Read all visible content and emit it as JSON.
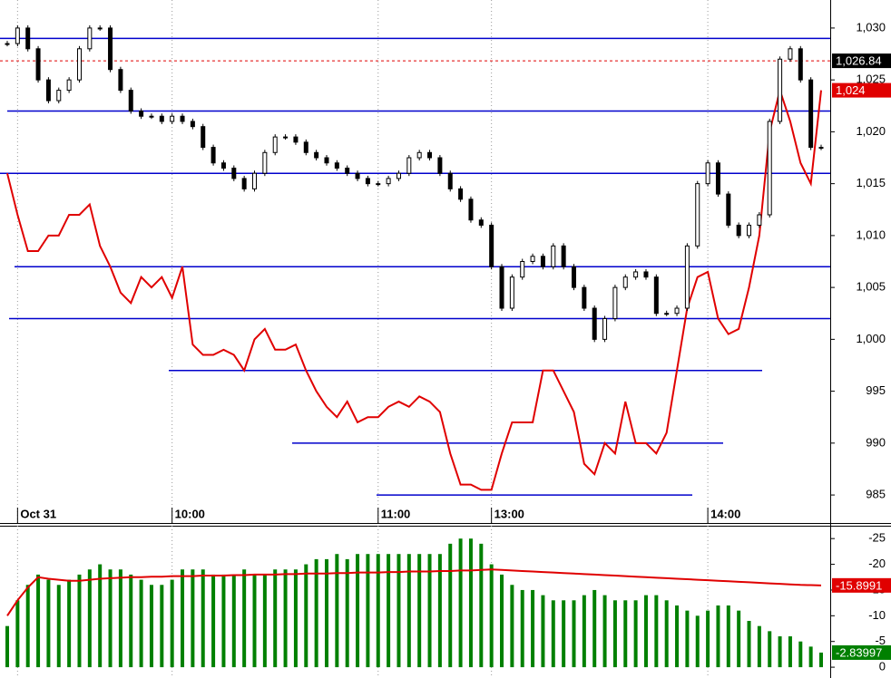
{
  "chart_data": [
    {
      "type": "candlestick",
      "categories": [
        null,
        "Oct 31",
        null,
        null,
        null,
        null,
        null,
        null,
        null,
        null,
        null,
        null,
        null,
        null,
        null,
        null,
        "10:00",
        null,
        null,
        null,
        null,
        null,
        null,
        null,
        null,
        null,
        null,
        null,
        null,
        null,
        null,
        null,
        null,
        null,
        null,
        null,
        "11:00",
        null,
        null,
        null,
        null,
        null,
        null,
        null,
        null,
        null,
        null,
        "13:00",
        null,
        null,
        null,
        null,
        null,
        null,
        null,
        null,
        null,
        null,
        null,
        null,
        null,
        null,
        null,
        null,
        null,
        null,
        null,
        null,
        "14:00",
        null,
        null,
        null,
        null,
        null,
        null,
        null,
        null,
        null,
        null,
        null
      ],
      "values": [
        1028.5,
        1030,
        1028,
        1025,
        1023,
        1024,
        1025,
        1028,
        1030,
        1030,
        1026,
        1024,
        1022,
        1021.5,
        1021.5,
        1021,
        1021.5,
        1021,
        1020.5,
        1018.5,
        1017,
        1016.5,
        1015.5,
        1014.5,
        1016,
        1018,
        1019.5,
        1019.5,
        1019,
        1018,
        1017.5,
        1017,
        1016.5,
        1016,
        1015.5,
        1015,
        1015,
        1015.5,
        1016,
        1017.5,
        1018,
        1017.5,
        1016,
        1014.5,
        1013.5,
        1011.5,
        1011,
        1007,
        1003,
        1006,
        1007.5,
        1008,
        1007,
        1009,
        1007,
        1005,
        1003,
        1000,
        1002,
        1005,
        1006,
        1006.5,
        1006,
        1002.5,
        1002.5,
        1003,
        1009,
        1015,
        1017,
        1014,
        1011,
        1010,
        1011,
        1012,
        1021,
        1027,
        1028,
        1025,
        1018.5,
        1018.5
      ],
      "color": "#000000",
      "series": [
        {
          "color": "#e00000",
          "last_label": "1,024",
          "values": [
            1016,
            1012,
            1008.5,
            1008.5,
            1010,
            1010,
            1012,
            1012,
            1013,
            1009,
            1007,
            1004.5,
            1003.5,
            1006,
            1005,
            1006,
            1004,
            1007,
            999.5,
            998.5,
            998.5,
            999,
            998.5,
            997,
            1000,
            1001,
            999,
            999,
            999.5,
            997,
            995,
            993.5,
            992.5,
            994,
            992,
            992.5,
            992.5,
            993.5,
            994,
            993.5,
            994.5,
            994,
            993,
            989,
            986,
            986,
            985.5,
            985.5,
            989,
            992,
            992,
            992,
            997,
            997,
            995,
            993,
            988,
            987,
            990,
            989,
            994,
            990,
            990,
            989,
            991,
            997,
            1003,
            1006,
            1006.5,
            1002,
            1000.5,
            1001,
            1005,
            1010,
            1020,
            1024,
            1021,
            1017,
            1015,
            1024
          ]
        }
      ],
      "levels": [
        1029,
        1022,
        1016,
        1007,
        1002,
        997,
        990,
        985
      ],
      "level_color": "#0000cc",
      "last_price": {
        "value": 1026.84,
        "label": "1,026.84"
      },
      "ylim": [
        982.3,
        1032.7
      ],
      "yticks": [
        985,
        990,
        995,
        {
          "value": 1000,
          "label": "1,000"
        },
        {
          "value": 1005,
          "label": "1,005"
        },
        {
          "value": 1010,
          "label": "1,010"
        },
        {
          "value": 1015,
          "label": "1,015"
        },
        {
          "value": 1020,
          "label": "1,020"
        },
        {
          "value": 1025,
          "label": "1,025"
        },
        {
          "value": 1030,
          "label": "1,030"
        }
      ],
      "grid": true
    },
    {
      "type": "bar",
      "values": [
        -8,
        -13,
        -16,
        -18,
        -17,
        -16,
        -17,
        -18,
        -19,
        -20,
        -19,
        -19,
        -18,
        -17,
        -16,
        -16,
        -17,
        -19,
        -19,
        -19,
        -18,
        -18,
        -18,
        -19,
        -18,
        -18,
        -19,
        -19,
        -19,
        -20,
        -21,
        -21,
        -22,
        -21,
        -22,
        -22,
        -22,
        -22,
        -22,
        -22,
        -22,
        -22,
        -22,
        -24,
        -25,
        -25,
        -24,
        -20,
        -18,
        -16,
        -15,
        -15,
        -14,
        -13,
        -13,
        -13,
        -14,
        -15,
        -14,
        -13,
        -13,
        -13,
        -14,
        -14,
        -13,
        -12,
        -11,
        -10,
        -11,
        -12,
        -12,
        -11,
        -9,
        -8,
        -7,
        -6,
        -6,
        -5,
        -4,
        -2.83997
      ],
      "color": "#008000",
      "series": [
        {
          "color": "#e00000",
          "values": [
            -10,
            -13,
            -15.5,
            -17.5,
            -17.2,
            -17,
            -16.8,
            -16.8,
            -17,
            -17.2,
            -17.3,
            -17.4,
            -17.5,
            -17.5,
            -17.6,
            -17.6,
            -17.7,
            -17.7,
            -17.7,
            -17.8,
            -17.8,
            -17.8,
            -17.9,
            -17.9,
            -18,
            -18,
            -18,
            -18.1,
            -18.1,
            -18.2,
            -18.2,
            -18.2,
            -18.3,
            -18.3,
            -18.4,
            -18.4,
            -18.4,
            -18.5,
            -18.5,
            -18.6,
            -18.6,
            -18.6,
            -18.7,
            -18.7,
            -18.8,
            -18.8,
            -18.9,
            -19,
            -18.9,
            -18.8,
            -18.7,
            -18.6,
            -18.5,
            -18.4,
            -18.3,
            -18.2,
            -18.1,
            -18,
            -17.9,
            -17.8,
            -17.7,
            -17.6,
            -17.5,
            -17.4,
            -17.3,
            -17.2,
            -17.1,
            -17,
            -16.9,
            -16.8,
            -16.7,
            -16.6,
            -16.5,
            -16.4,
            -16.3,
            -16.2,
            -16.1,
            -16,
            -15.95,
            -15.8991
          ]
        }
      ],
      "ylim": [
        2.1,
        -27.5
      ],
      "yticks": [
        0,
        -5,
        -10,
        -15,
        -20,
        -25
      ]
    }
  ]
}
